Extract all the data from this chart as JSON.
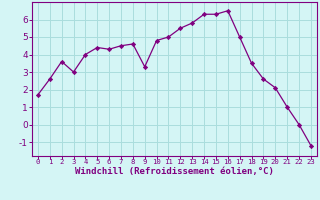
{
  "x": [
    0,
    1,
    2,
    3,
    4,
    5,
    6,
    7,
    8,
    9,
    10,
    11,
    12,
    13,
    14,
    15,
    16,
    17,
    18,
    19,
    20,
    21,
    22,
    23
  ],
  "y": [
    1.7,
    2.6,
    3.6,
    3.0,
    4.0,
    4.4,
    4.3,
    4.5,
    4.6,
    3.3,
    4.8,
    5.0,
    5.5,
    5.8,
    6.3,
    6.3,
    6.5,
    5.0,
    3.5,
    2.6,
    2.1,
    1.0,
    0.0,
    -1.2
  ],
  "line_color": "#800080",
  "marker": "D",
  "marker_size": 2.2,
  "bg_color": "#d4f5f5",
  "grid_color": "#aadddd",
  "xlabel": "Windchill (Refroidissement éolien,°C)",
  "xlabel_color": "#800080",
  "tick_color": "#800080",
  "axis_color": "#800080",
  "ylim": [
    -1.8,
    7.0
  ],
  "yticks": [
    -1,
    0,
    1,
    2,
    3,
    4,
    5,
    6
  ],
  "xlim": [
    -0.5,
    23.5
  ],
  "xticks": [
    0,
    1,
    2,
    3,
    4,
    5,
    6,
    7,
    8,
    9,
    10,
    11,
    12,
    13,
    14,
    15,
    16,
    17,
    18,
    19,
    20,
    21,
    22,
    23
  ],
  "xlabel_fontsize": 6.5,
  "ytick_fontsize": 6.5,
  "xtick_fontsize": 5.2
}
